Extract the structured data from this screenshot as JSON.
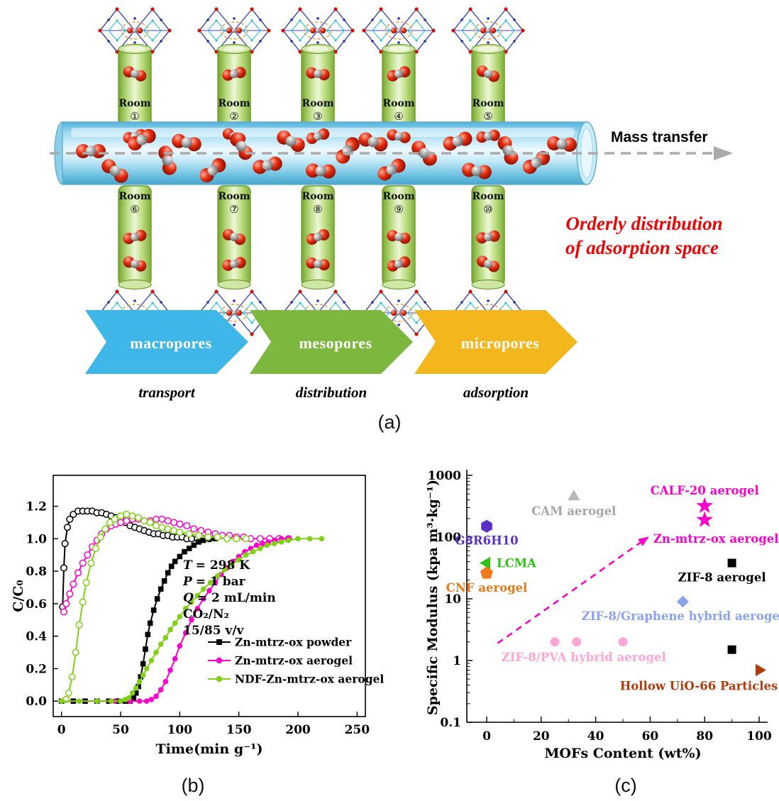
{
  "figure": {
    "panel_a": {
      "label": "(a)",
      "mass_transfer": "Mass transfer",
      "orderly_line1": "Orderly distribution",
      "orderly_line2": "of adsorption space",
      "orderly_color": "#ee0404",
      "room_word": "Room",
      "rooms_top": [
        "①",
        "②",
        "③",
        "④",
        "⑤"
      ],
      "rooms_bottom": [
        "⑥",
        "⑦",
        "⑧",
        "⑨",
        "⑩"
      ],
      "chevrons": [
        {
          "label": "macropores",
          "sublabel": "transport",
          "color": "#3eb6e8"
        },
        {
          "label": "mesopores",
          "sublabel": "distribution",
          "color": "#7cb73e"
        },
        {
          "label": "micropores",
          "sublabel": "adsorption",
          "color": "#f3b71d"
        }
      ]
    },
    "panel_b": {
      "label": "(b)"
    },
    "panel_c": {
      "label": "(c)"
    }
  },
  "chart_data": [
    {
      "type": "line",
      "panel": "b",
      "xlabel": "Time(min g⁻¹)",
      "ylabel": "C/C₀",
      "xlim": [
        0,
        250
      ],
      "ylim": [
        0,
        1.2
      ],
      "xticks": [
        0,
        50,
        100,
        150,
        200,
        250
      ],
      "xtick_labels": [
        "0",
        "50",
        "100",
        "150",
        "200",
        "250"
      ],
      "yticks": [
        0,
        0.2,
        0.4,
        0.6,
        0.8,
        1,
        1.2
      ],
      "ytick_labels": [
        "0.0",
        "0.2",
        "0.4",
        "0.6",
        "0.8",
        "1.0",
        "1.2"
      ],
      "annotations": [
        "T = 298 K",
        "P = 1 bar",
        "Q = 2 mL/min",
        "CO₂/N₂",
        "15/85 v/v"
      ],
      "legend": [
        {
          "label": "Zn-mtrz-ox powder",
          "color": "#000000",
          "marker": "square"
        },
        {
          "label": "Zn-mtrz-ox aerogel",
          "color": "#ff00cc",
          "marker": "circle"
        },
        {
          "label": "NDF-Zn-mtrz-ox aerogel",
          "color": "#7fd112",
          "marker": "circle"
        }
      ],
      "series": [
        {
          "name": "Zn-mtrz-ox powder (N₂ roll-up)",
          "color": "#000000",
          "marker": "circle-open",
          "points": [
            [
              1,
              0.58
            ],
            [
              2,
              0.82
            ],
            [
              3,
              0.97
            ],
            [
              5,
              1.07
            ],
            [
              7,
              1.12
            ],
            [
              10,
              1.15
            ],
            [
              14,
              1.17
            ],
            [
              18,
              1.17
            ],
            [
              22,
              1.17
            ],
            [
              26,
              1.17
            ],
            [
              30,
              1.16
            ],
            [
              34,
              1.16
            ],
            [
              38,
              1.15
            ],
            [
              42,
              1.14
            ],
            [
              46,
              1.13
            ],
            [
              50,
              1.12
            ],
            [
              54,
              1.1
            ],
            [
              58,
              1.08
            ],
            [
              62,
              1.07
            ],
            [
              66,
              1.06
            ],
            [
              70,
              1.05
            ],
            [
              74,
              1.04
            ],
            [
              78,
              1.03
            ],
            [
              82,
              1.03
            ],
            [
              86,
              1.02
            ],
            [
              90,
              1.02
            ],
            [
              94,
              1.01
            ],
            [
              98,
              1.01
            ],
            [
              102,
              1.01
            ],
            [
              106,
              1
            ],
            [
              110,
              1
            ],
            [
              115,
              1
            ],
            [
              120,
              1
            ],
            [
              125,
              1
            ]
          ]
        },
        {
          "name": "Zn-mtrz-ox powder (CO₂)",
          "color": "#000000",
          "marker": "square",
          "points": [
            [
              0,
              0
            ],
            [
              10,
              0
            ],
            [
              20,
              0
            ],
            [
              30,
              0
            ],
            [
              40,
              0
            ],
            [
              48,
              0
            ],
            [
              54,
              0
            ],
            [
              58,
              0
            ],
            [
              61,
              0.02
            ],
            [
              63,
              0.05
            ],
            [
              65,
              0.09
            ],
            [
              67,
              0.15
            ],
            [
              69,
              0.23
            ],
            [
              71,
              0.32
            ],
            [
              73,
              0.41
            ],
            [
              75,
              0.48
            ],
            [
              78,
              0.56
            ],
            [
              81,
              0.63
            ],
            [
              84,
              0.69
            ],
            [
              87,
              0.74
            ],
            [
              90,
              0.79
            ],
            [
              93,
              0.83
            ],
            [
              96,
              0.86
            ],
            [
              100,
              0.89
            ],
            [
              104,
              0.92
            ],
            [
              108,
              0.94
            ],
            [
              112,
              0.96
            ],
            [
              116,
              0.98
            ],
            [
              120,
              0.99
            ],
            [
              125,
              1
            ],
            [
              130,
              1
            ]
          ]
        },
        {
          "name": "Zn-mtrz-ox aerogel (N₂ roll-up)",
          "color": "#ff00cc",
          "marker": "circle-open",
          "points": [
            [
              2,
              0.55
            ],
            [
              4,
              0.6
            ],
            [
              7,
              0.66
            ],
            [
              10,
              0.72
            ],
            [
              14,
              0.79
            ],
            [
              18,
              0.85
            ],
            [
              22,
              0.9
            ],
            [
              26,
              0.95
            ],
            [
              30,
              0.99
            ],
            [
              34,
              1.03
            ],
            [
              38,
              1.06
            ],
            [
              42,
              1.08
            ],
            [
              46,
              1.09
            ],
            [
              50,
              1.1
            ],
            [
              55,
              1.11
            ],
            [
              60,
              1.12
            ],
            [
              65,
              1.12
            ],
            [
              70,
              1.11
            ],
            [
              75,
              1.11
            ],
            [
              80,
              1.12
            ],
            [
              85,
              1.12
            ],
            [
              90,
              1.11
            ],
            [
              95,
              1.1
            ],
            [
              100,
              1.09
            ],
            [
              106,
              1.08
            ],
            [
              112,
              1.06
            ],
            [
              118,
              1.05
            ],
            [
              124,
              1.04
            ],
            [
              130,
              1.03
            ],
            [
              136,
              1.02
            ],
            [
              142,
              1.02
            ],
            [
              148,
              1.01
            ],
            [
              154,
              1.01
            ],
            [
              160,
              1
            ],
            [
              168,
              1
            ],
            [
              176,
              1
            ],
            [
              184,
              1
            ],
            [
              192,
              1
            ]
          ]
        },
        {
          "name": "Zn-mtrz-ox aerogel (CO₂)",
          "color": "#ff00cc",
          "marker": "circle",
          "points": [
            [
              0,
              0
            ],
            [
              15,
              0
            ],
            [
              30,
              0
            ],
            [
              45,
              0
            ],
            [
              58,
              0
            ],
            [
              66,
              0
            ],
            [
              72,
              0
            ],
            [
              76,
              0.01
            ],
            [
              80,
              0.03
            ],
            [
              84,
              0.07
            ],
            [
              88,
              0.12
            ],
            [
              92,
              0.19
            ],
            [
              96,
              0.26
            ],
            [
              100,
              0.34
            ],
            [
              105,
              0.42
            ],
            [
              110,
              0.5
            ],
            [
              115,
              0.57
            ],
            [
              120,
              0.63
            ],
            [
              125,
              0.68
            ],
            [
              130,
              0.73
            ],
            [
              135,
              0.78
            ],
            [
              140,
              0.82
            ],
            [
              145,
              0.86
            ],
            [
              150,
              0.89
            ],
            [
              155,
              0.92
            ],
            [
              160,
              0.94
            ],
            [
              165,
              0.96
            ],
            [
              170,
              0.97
            ],
            [
              175,
              0.98
            ],
            [
              180,
              0.99
            ],
            [
              186,
              1
            ],
            [
              192,
              1
            ]
          ]
        },
        {
          "name": "NDF-Zn-mtrz-ox aerogel (N₂ roll-up)",
          "color": "#7fd112",
          "marker": "circle-open",
          "points": [
            [
              4,
              0.01
            ],
            [
              6,
              0.05
            ],
            [
              9,
              0.15
            ],
            [
              12,
              0.3
            ],
            [
              15,
              0.47
            ],
            [
              18,
              0.61
            ],
            [
              21,
              0.73
            ],
            [
              25,
              0.85
            ],
            [
              29,
              0.94
            ],
            [
              33,
              1.01
            ],
            [
              37,
              1.06
            ],
            [
              41,
              1.1
            ],
            [
              45,
              1.12
            ],
            [
              50,
              1.14
            ],
            [
              55,
              1.15
            ],
            [
              60,
              1.14
            ],
            [
              65,
              1.13
            ],
            [
              70,
              1.11
            ],
            [
              75,
              1.1
            ],
            [
              80,
              1.08
            ],
            [
              85,
              1.07
            ],
            [
              90,
              1.06
            ],
            [
              95,
              1.05
            ],
            [
              100,
              1.04
            ],
            [
              108,
              1.03
            ],
            [
              116,
              1.02
            ],
            [
              124,
              1.01
            ],
            [
              132,
              1.01
            ],
            [
              140,
              1
            ],
            [
              148,
              1
            ],
            [
              156,
              1
            ]
          ]
        },
        {
          "name": "NDF-Zn-mtrz-ox aerogel (CO₂)",
          "color": "#7fd112",
          "marker": "circle",
          "points": [
            [
              0,
              0
            ],
            [
              15,
              0
            ],
            [
              30,
              0
            ],
            [
              42,
              0
            ],
            [
              50,
              0
            ],
            [
              54,
              0.01
            ],
            [
              57,
              0.02
            ],
            [
              60,
              0.05
            ],
            [
              63,
              0.08
            ],
            [
              66,
              0.12
            ],
            [
              69,
              0.16
            ],
            [
              72,
              0.2
            ],
            [
              76,
              0.25
            ],
            [
              80,
              0.3
            ],
            [
              84,
              0.35
            ],
            [
              88,
              0.39
            ],
            [
              92,
              0.44
            ],
            [
              96,
              0.48
            ],
            [
              100,
              0.52
            ],
            [
              105,
              0.57
            ],
            [
              110,
              0.61
            ],
            [
              115,
              0.65
            ],
            [
              120,
              0.69
            ],
            [
              126,
              0.73
            ],
            [
              132,
              0.77
            ],
            [
              138,
              0.81
            ],
            [
              144,
              0.84
            ],
            [
              150,
              0.87
            ],
            [
              156,
              0.9
            ],
            [
              162,
              0.92
            ],
            [
              168,
              0.94
            ],
            [
              174,
              0.96
            ],
            [
              180,
              0.97
            ],
            [
              186,
              0.98
            ],
            [
              192,
              0.99
            ],
            [
              200,
              1
            ],
            [
              210,
              1
            ],
            [
              220,
              1
            ]
          ]
        }
      ]
    },
    {
      "type": "scatter",
      "panel": "c",
      "xlabel": "MOFs Content (wt%)",
      "ylabel": "Specific Modulus (kpa m³·kg⁻¹)",
      "xlim": [
        0,
        100
      ],
      "ylog": true,
      "ylim": [
        0.1,
        1000
      ],
      "xticks": [
        0,
        20,
        40,
        60,
        80,
        100
      ],
      "yticks": [
        0.1,
        1,
        10,
        100,
        1000
      ],
      "ytick_labels": [
        "0.1",
        "1",
        "10",
        "100",
        "1000"
      ],
      "arrow": {
        "x1": 4,
        "y1": 1.9,
        "x2": 57,
        "y2": 85,
        "color": "#ff00cc",
        "label": "Zn-mtrz-ox aerogel",
        "label_color": "#ff00cc"
      },
      "points": [
        {
          "label": "G8R6H10",
          "x": 0,
          "y": 150,
          "marker": "hexagon",
          "color": "#5a30c8",
          "label_color": "#5a30c8",
          "label_pos": "below"
        },
        {
          "label": "CAM aerogel",
          "x": 32,
          "y": 450,
          "marker": "triangle-up",
          "color": "#b8b8b8",
          "label_color": "#a6a6a6",
          "label_pos": "below"
        },
        {
          "label": "CALF-20 aerogel",
          "x": 80,
          "y": 320,
          "marker": "star",
          "color": "#ff00cc",
          "label_color": "#ff00cc",
          "label_pos": "above"
        },
        {
          "x": 80,
          "y": 190,
          "marker": "star",
          "color": "#ff00cc"
        },
        {
          "label": "LCMA",
          "x": 0,
          "y": 38,
          "marker": "triangle-left",
          "color": "#2fc214",
          "label_color": "#2fc214",
          "label_pos": "right"
        },
        {
          "label": "CNF aerogel",
          "x": 0,
          "y": 26,
          "marker": "pentagon",
          "color": "#f07818",
          "label_color": "#f07818",
          "label_pos": "below"
        },
        {
          "label": "ZIF-8 aerogel",
          "x": 90,
          "y": 38,
          "marker": "square",
          "color": "#000000",
          "label_color": "#000000",
          "label_pos": "below-left"
        },
        {
          "label": "ZIF-8/Graphene hybrid aerogel",
          "x": 72,
          "y": 9,
          "marker": "diamond",
          "color": "#8ba3ee",
          "label_color": "#8ba3ee",
          "label_pos": "below"
        },
        {
          "x": 25,
          "y": 2,
          "marker": "circle",
          "color": "#ffa6d2"
        },
        {
          "label": "ZIF-8/PVA hybrid aerogel",
          "x": 33,
          "y": 2,
          "marker": "circle",
          "color": "#ffa6d2",
          "label_color": "#ffa6d2",
          "label_pos": "below-right"
        },
        {
          "x": 50,
          "y": 2,
          "marker": "circle",
          "color": "#ffa6d2"
        },
        {
          "x": 90,
          "y": 1.5,
          "marker": "square",
          "color": "#000000"
        },
        {
          "label": "Hollow UiO-66 Particles",
          "x": 100,
          "y": 0.7,
          "marker": "triangle-right",
          "color": "#b03c0c",
          "label_color": "#b03c0c",
          "label_pos": "below-left-far"
        }
      ]
    }
  ]
}
